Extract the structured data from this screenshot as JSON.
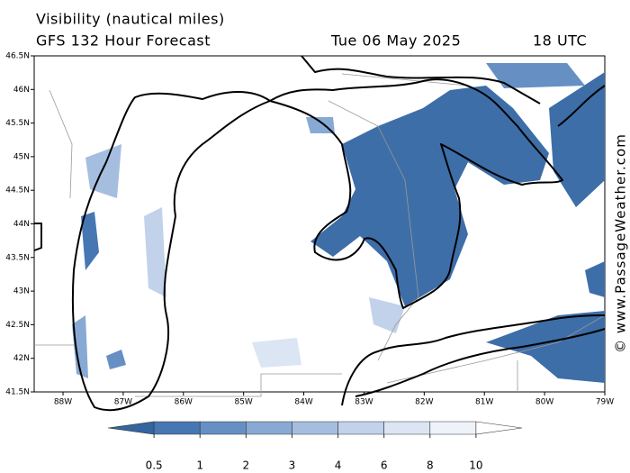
{
  "title": "Visibility (nautical miles)",
  "subtitle": "GFS 132 Hour Forecast",
  "date": "Tue 06 May 2025",
  "time": "18 UTC",
  "credit": "© www.PassageWeather.com",
  "lat_ticks": [
    "41.5N",
    "42N",
    "42.5N",
    "43N",
    "43.5N",
    "44N",
    "44.5N",
    "45N",
    "45.5N",
    "46N",
    "46.5N"
  ],
  "lon_ticks": [
    "88W",
    "87W",
    "86W",
    "85W",
    "84W",
    "83W",
    "82W",
    "81W",
    "80W",
    "79W"
  ],
  "colorbar": {
    "levels": [
      0.5,
      1,
      2,
      3,
      4,
      6,
      8,
      10
    ],
    "colors": [
      "#3565a0",
      "#4677b3",
      "#6690c4",
      "#88a9d3",
      "#a5bee0",
      "#c1d2ea",
      "#dbe5f3",
      "#eef3fa",
      "#ffffff"
    ]
  }
}
